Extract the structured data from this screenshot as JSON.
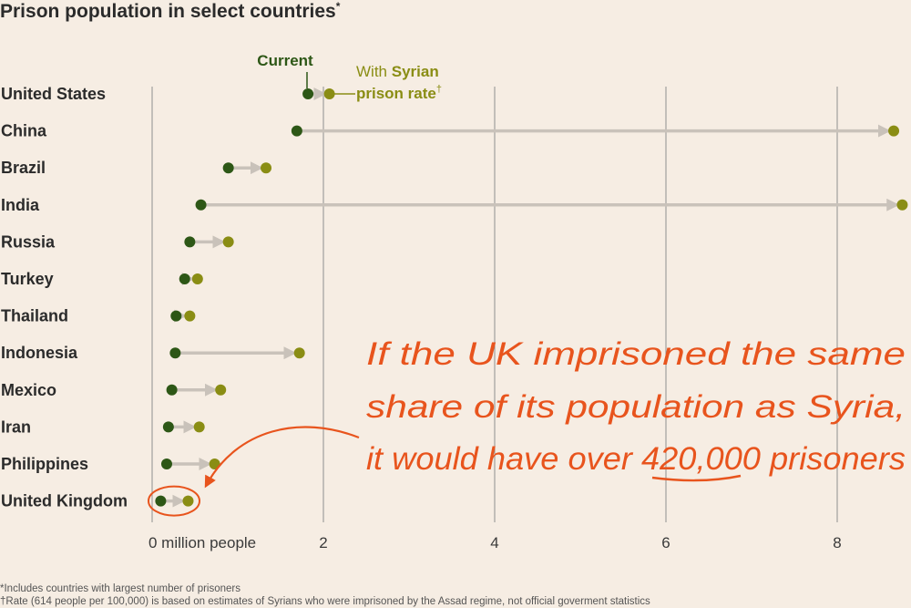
{
  "chart_data": {
    "type": "dot-arrow",
    "title": "Prison population in select countries",
    "title_mark": "*",
    "x_ticks": [
      {
        "value": 0,
        "label": "0 million people"
      },
      {
        "value": 2,
        "label": "2"
      },
      {
        "value": 4,
        "label": "4"
      },
      {
        "value": 6,
        "label": "6"
      },
      {
        "value": 8,
        "label": "8"
      }
    ],
    "xlim": [
      0,
      8.8
    ],
    "series": [
      {
        "name": "Current",
        "color": "#2d5716"
      },
      {
        "name": "With Syrian prison rate",
        "name_parts": [
          "With ",
          "Syrian",
          "prison rate",
          "†"
        ],
        "color": "#8a8d14"
      }
    ],
    "categories": [
      "United States",
      "China",
      "Brazil",
      "India",
      "Russia",
      "Turkey",
      "Thailand",
      "Indonesia",
      "Mexico",
      "Iran",
      "Philippines",
      "United Kingdom"
    ],
    "current": [
      1.82,
      1.69,
      0.89,
      0.57,
      0.44,
      0.38,
      0.28,
      0.27,
      0.23,
      0.19,
      0.17,
      0.1
    ],
    "with_syrian_rate": [
      2.07,
      8.66,
      1.33,
      8.76,
      0.89,
      0.53,
      0.44,
      1.72,
      0.8,
      0.55,
      0.73,
      0.42
    ],
    "grid": true,
    "annotation": {
      "lines": [
        "If the UK imprisoned the same",
        "share of its population as Syria,",
        "it would have over 420,000 prisoners"
      ],
      "underlined": "420,000",
      "points_to": "United Kingdom"
    }
  },
  "footnotes": [
    "*Includes countries with largest number of prisoners",
    "†Rate (614 people per 100,000) is based on estimates of Syrians who were imprisoned by the Assad regime, not official goverment statistics"
  ],
  "colors": {
    "background": "#f6ede3",
    "current": "#2d5716",
    "syrian": "#8a8d14",
    "arrow": "#c9c2ba",
    "grid": "#8f8f8f",
    "annotation": "#e8541d"
  }
}
